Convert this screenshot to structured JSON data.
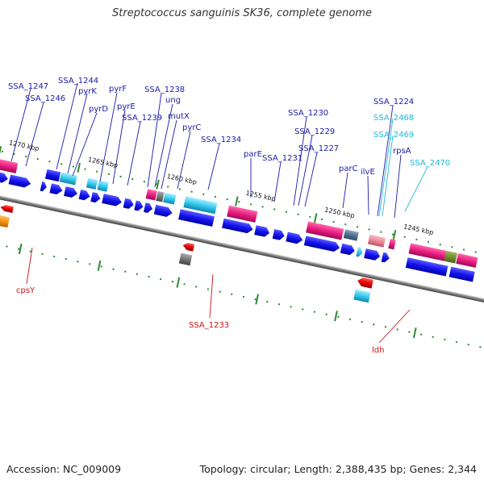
{
  "map": {
    "title": "Streptococcus sanguinis SK36, complete genome",
    "accession": "Accession: NC_009009",
    "summary": "Topology: circular; Length: 2,388,435 bp; Genes: 2,344"
  },
  "ticks": [
    "1270 kbp",
    "1265 kbp",
    "1260 kbp",
    "1255 kbp",
    "1250 kbp",
    "1245 kbp"
  ],
  "labels": [
    {
      "text": "SSA_1247",
      "color": "#1a1aa8"
    },
    {
      "text": "SSA_1246",
      "color": "#1a1aa8"
    },
    {
      "text": "SSA_1244",
      "color": "#1a1aa8"
    },
    {
      "text": "pyrK",
      "color": "#1a1aa8"
    },
    {
      "text": "pyrD",
      "color": "#1a1aa8"
    },
    {
      "text": "pyrF",
      "color": "#1a1aa8"
    },
    {
      "text": "pyrE",
      "color": "#1a1aa8"
    },
    {
      "text": "SSA_1239",
      "color": "#1a1aa8"
    },
    {
      "text": "SSA_1238",
      "color": "#1a1aa8"
    },
    {
      "text": "ung",
      "color": "#1a1aa8"
    },
    {
      "text": "mutX",
      "color": "#1a1aa8"
    },
    {
      "text": "pyrC",
      "color": "#1a1aa8"
    },
    {
      "text": "SSA_1234",
      "color": "#1a1aa8"
    },
    {
      "text": "parE",
      "color": "#1a1aa8"
    },
    {
      "text": "SSA_1231",
      "color": "#1a1aa8"
    },
    {
      "text": "SSA_1230",
      "color": "#1a1aa8"
    },
    {
      "text": "SSA_1229",
      "color": "#1a1aa8"
    },
    {
      "text": "SSA_1227",
      "color": "#1a1aa8"
    },
    {
      "text": "parC",
      "color": "#1a1aa8"
    },
    {
      "text": "ilvE",
      "color": "#1a1aa8"
    },
    {
      "text": "SSA_1224",
      "color": "#1a1aa8"
    },
    {
      "text": "SSA_2468",
      "color": "#22b8d8"
    },
    {
      "text": "SSA_2469",
      "color": "#22b8d8"
    },
    {
      "text": "rpsA",
      "color": "#1a1aa8"
    },
    {
      "text": "SSA_2470",
      "color": "#22b8d8"
    },
    {
      "text": "cpsY",
      "color": "#cc1111"
    },
    {
      "text": "SSA_1233",
      "color": "#cc1111"
    },
    {
      "text": "ldh",
      "color": "#cc1111"
    }
  ]
}
